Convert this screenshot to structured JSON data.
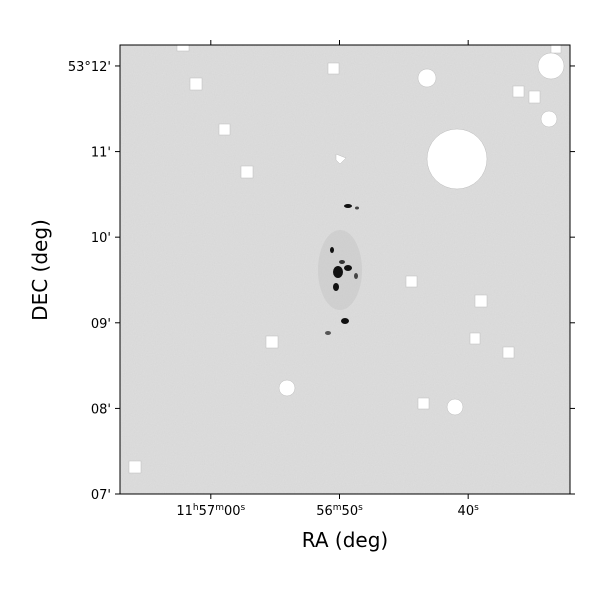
{
  "chart_data": {
    "type": "image",
    "xlabel": "RA (deg)",
    "ylabel": "DEC (deg)",
    "xlim": [
      179.2794,
      179.1337
    ],
    "ylim": [
      53.11667,
      53.20408
    ],
    "xticks": [
      {
        "value": 179.25,
        "label": "11h57m00s"
      },
      {
        "value": 179.20833,
        "label": "56m50s"
      },
      {
        "value": 179.16667,
        "label": "40s"
      }
    ],
    "yticks": [
      {
        "value": 53.2,
        "label": "53°12'"
      },
      {
        "value": 53.18333,
        "label": "11'"
      },
      {
        "value": 53.16667,
        "label": "10'"
      },
      {
        "value": 53.15,
        "label": "09'"
      },
      {
        "value": 53.13333,
        "label": "08'"
      },
      {
        "value": 53.11667,
        "label": "07'"
      }
    ]
  }
}
